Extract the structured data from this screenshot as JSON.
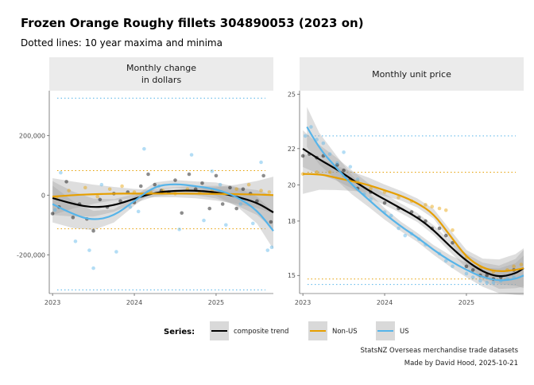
{
  "title": "Frozen Orange Roughy fillets 304890053 (2023 on)",
  "subtitle": "Dotted lines: 10 year maxima and minima",
  "legend": {
    "title": "Series:",
    "items": [
      {
        "label": "composite trend",
        "color": "#000000"
      },
      {
        "label": "Non-US",
        "color": "#E69F00"
      },
      {
        "label": "US",
        "color": "#56B4E9"
      }
    ]
  },
  "caption": [
    "StatsNZ Overseas merchandise trade datasets",
    "Made by David Hood, 2025-10-21"
  ],
  "chart_data": [
    {
      "type": "scatter",
      "panel": "left",
      "strip_label": [
        "Monthly change",
        "in dollars"
      ],
      "x_ticks": [
        "2023",
        "2024",
        "2025"
      ],
      "x_range": [
        2022.96,
        2025.7
      ],
      "y_ticks": [
        200000,
        0,
        -200000
      ],
      "y_tick_labels": [
        "200,000",
        "0",
        "-200,000"
      ],
      "ylim": [
        -330000,
        350000
      ],
      "ref_lines": [
        {
          "series": "US",
          "y": [
            325000,
            -318000
          ]
        },
        {
          "series": "Non-US",
          "y": [
            82000,
            -113000
          ]
        }
      ],
      "series": [
        {
          "name": "composite trend",
          "color": "#000000",
          "smooth": {
            "x": [
              2023.0,
              2023.25,
              2023.5,
              2023.75,
              2024.0,
              2024.25,
              2024.5,
              2024.75,
              2025.0,
              2025.25,
              2025.5,
              2025.7
            ],
            "y": [
              -10000,
              -30000,
              -42000,
              -35000,
              -12000,
              8000,
              15000,
              15000,
              10000,
              -5000,
              -25000,
              -58000
            ]
          },
          "points": {
            "x": [
              2023.0,
              2023.08,
              2023.17,
              2023.25,
              2023.33,
              2023.42,
              2023.5,
              2023.58,
              2023.67,
              2023.75,
              2023.83,
              2023.92,
              2024.0,
              2024.08,
              2024.17,
              2024.25,
              2024.33,
              2024.42,
              2024.5,
              2024.58,
              2024.67,
              2024.75,
              2024.83,
              2024.92,
              2025.0,
              2025.08,
              2025.17,
              2025.25,
              2025.33,
              2025.42,
              2025.5,
              2025.58,
              2025.67
            ],
            "y": [
              -62000,
              -40000,
              45000,
              -75000,
              -30000,
              -80000,
              -120000,
              -15000,
              -40000,
              5000,
              -20000,
              10000,
              -25000,
              30000,
              70000,
              35000,
              15000,
              10000,
              50000,
              -60000,
              70000,
              20000,
              40000,
              -45000,
              65000,
              -30000,
              25000,
              -45000,
              20000,
              5000,
              -20000,
              65000,
              -90000
            ]
          }
        },
        {
          "name": "Non-US",
          "color": "#E69F00",
          "smooth": {
            "x": [
              2023.0,
              2023.25,
              2023.5,
              2023.75,
              2024.0,
              2024.25,
              2024.5,
              2024.75,
              2025.0,
              2025.25,
              2025.5,
              2025.7
            ],
            "y": [
              -5000,
              0,
              3000,
              5000,
              5000,
              5000,
              5000,
              5000,
              4000,
              3000,
              2000,
              0
            ]
          },
          "points": {
            "x": [
              2023.05,
              2023.2,
              2023.4,
              2023.55,
              2023.7,
              2023.85,
              2024.0,
              2024.2,
              2024.35,
              2024.5,
              2024.65,
              2024.8,
              2024.95,
              2025.1,
              2025.25,
              2025.4,
              2025.55,
              2025.65
            ],
            "y": [
              -10000,
              15000,
              25000,
              -5000,
              20000,
              30000,
              10000,
              10000,
              15000,
              5000,
              20000,
              10000,
              15000,
              5000,
              20000,
              35000,
              15000,
              10000
            ]
          }
        },
        {
          "name": "US",
          "color": "#56B4E9",
          "smooth": {
            "x": [
              2023.0,
              2023.25,
              2023.5,
              2023.75,
              2024.0,
              2024.25,
              2024.5,
              2024.75,
              2025.0,
              2025.25,
              2025.5,
              2025.7
            ],
            "y": [
              -30000,
              -65000,
              -85000,
              -70000,
              -20000,
              30000,
              38000,
              30000,
              20000,
              -5000,
              -50000,
              -120000
            ]
          },
          "points": {
            "x": [
              2023.03,
              2023.1,
              2023.28,
              2023.45,
              2023.5,
              2023.6,
              2023.78,
              2023.95,
              2024.05,
              2024.12,
              2024.3,
              2024.55,
              2024.7,
              2024.85,
              2024.95,
              2025.05,
              2025.12,
              2025.3,
              2025.45,
              2025.55,
              2025.63,
              2025.68
            ],
            "y": [
              -50000,
              75000,
              -155000,
              -185000,
              -245000,
              35000,
              -190000,
              -40000,
              -55000,
              155000,
              30000,
              -115000,
              135000,
              -85000,
              80000,
              35000,
              -100000,
              -30000,
              -95000,
              110000,
              -185000,
              -175000
            ]
          }
        }
      ]
    },
    {
      "type": "scatter",
      "panel": "right",
      "strip_label": [
        "Monthly unit price"
      ],
      "x_ticks": [
        "2023",
        "2024",
        "2025"
      ],
      "x_range": [
        2022.96,
        2025.7
      ],
      "y_ticks": [
        25,
        22,
        20,
        18,
        15
      ],
      "ylim": [
        14.0,
        25.2
      ],
      "ref_lines": [
        {
          "series": "US",
          "y": [
            22.7,
            14.5
          ]
        },
        {
          "series": "Non-US",
          "y": [
            20.7,
            14.8
          ]
        }
      ],
      "series": [
        {
          "name": "composite trend",
          "color": "#000000",
          "smooth": {
            "x": [
              2023.0,
              2023.2,
              2023.4,
              2023.6,
              2023.8,
              2024.0,
              2024.2,
              2024.4,
              2024.6,
              2024.8,
              2025.0,
              2025.2,
              2025.4,
              2025.6,
              2025.7
            ],
            "y": [
              22.0,
              21.4,
              20.9,
              20.3,
              19.7,
              19.2,
              18.7,
              18.2,
              17.5,
              16.6,
              15.8,
              15.2,
              14.9,
              15.1,
              15.4
            ]
          },
          "points": {
            "x": [
              2023.0,
              2023.08,
              2023.17,
              2023.25,
              2023.42,
              2023.5,
              2023.58,
              2023.67,
              2023.83,
              2024.0,
              2024.17,
              2024.33,
              2024.42,
              2024.5,
              2024.58,
              2024.67,
              2024.75,
              2024.83,
              2025.0,
              2025.08,
              2025.17,
              2025.25,
              2025.33,
              2025.42,
              2025.58
            ],
            "y": [
              21.6,
              21.7,
              21.5,
              21.6,
              21.1,
              20.8,
              20.3,
              19.8,
              19.6,
              19.0,
              18.7,
              18.5,
              18.2,
              18.0,
              17.6,
              17.6,
              17.2,
              16.8,
              15.5,
              15.3,
              15.0,
              15.0,
              14.8,
              14.9,
              15.3
            ]
          }
        },
        {
          "name": "Non-US",
          "color": "#E69F00",
          "smooth": {
            "x": [
              2023.0,
              2023.2,
              2023.4,
              2023.6,
              2023.8,
              2024.0,
              2024.2,
              2024.4,
              2024.6,
              2024.8,
              2025.0,
              2025.2,
              2025.4,
              2025.6,
              2025.7
            ],
            "y": [
              20.6,
              20.6,
              20.4,
              20.2,
              20.0,
              19.7,
              19.4,
              19.0,
              18.4,
              17.2,
              16.0,
              15.4,
              15.2,
              15.3,
              15.4
            ]
          },
          "points": {
            "x": [
              2023.0,
              2023.17,
              2023.33,
              2023.5,
              2023.67,
              2023.83,
              2024.0,
              2024.17,
              2024.33,
              2024.5,
              2024.58,
              2024.67,
              2024.75,
              2024.83,
              2025.0,
              2025.17,
              2025.33,
              2025.5,
              2025.58,
              2025.67
            ],
            "y": [
              20.6,
              20.7,
              20.7,
              20.5,
              20.2,
              19.8,
              19.6,
              19.3,
              19.1,
              18.9,
              18.8,
              18.7,
              18.6,
              17.5,
              16.0,
              15.4,
              15.2,
              15.3,
              15.5,
              15.6
            ]
          }
        },
        {
          "name": "US",
          "color": "#56B4E9",
          "smooth": {
            "x": [
              2023.05,
              2023.2,
              2023.4,
              2023.6,
              2023.8,
              2024.0,
              2024.2,
              2024.4,
              2024.6,
              2024.8,
              2025.0,
              2025.2,
              2025.4,
              2025.6,
              2025.7
            ],
            "y": [
              23.2,
              22.0,
              21.0,
              20.0,
              19.2,
              18.4,
              17.7,
              17.1,
              16.4,
              15.8,
              15.3,
              14.9,
              14.7,
              14.8,
              15.0
            ]
          },
          "points": {
            "x": [
              2023.03,
              2023.1,
              2023.17,
              2023.25,
              2023.33,
              2023.42,
              2023.5,
              2023.58,
              2023.67,
              2023.75,
              2023.83,
              2024.0,
              2024.08,
              2024.17,
              2024.25,
              2024.33,
              2024.42,
              2024.5,
              2024.67,
              2024.75,
              2024.83,
              2025.0,
              2025.08,
              2025.17,
              2025.25,
              2025.33,
              2025.42,
              2025.5,
              2025.58
            ],
            "y": [
              22.7,
              23.2,
              22.5,
              22.3,
              21.7,
              21.2,
              21.8,
              21.0,
              20.3,
              19.5,
              19.2,
              18.5,
              18.3,
              17.6,
              17.2,
              17.3,
              17.0,
              16.7,
              16.2,
              15.8,
              15.5,
              15.1,
              14.9,
              14.7,
              14.6,
              14.6,
              14.7,
              14.8,
              14.9
            ]
          }
        }
      ]
    }
  ]
}
